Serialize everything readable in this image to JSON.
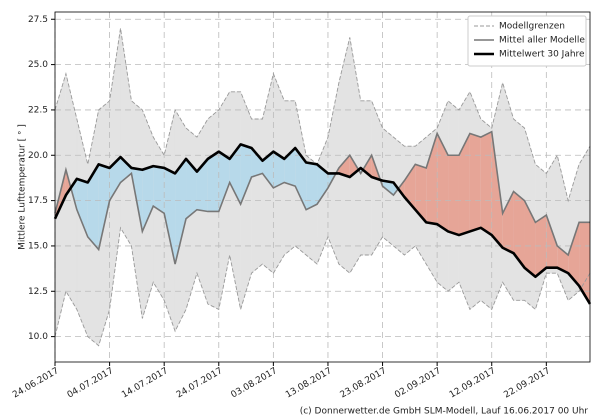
{
  "chart_data": {
    "type": "line",
    "ylabel": "Mittlere Lufttemperatur [ ° ]",
    "source": "(c) Donnerwetter.de GmbH SLM-Modell, Lauf 16.06.2017 00 Uhr",
    "x": [
      "2017-06-24",
      "2017-06-26",
      "2017-06-28",
      "2017-06-30",
      "2017-07-02",
      "2017-07-04",
      "2017-07-06",
      "2017-07-08",
      "2017-07-10",
      "2017-07-12",
      "2017-07-14",
      "2017-07-16",
      "2017-07-18",
      "2017-07-20",
      "2017-07-22",
      "2017-07-24",
      "2017-07-26",
      "2017-07-28",
      "2017-07-30",
      "2017-08-01",
      "2017-08-03",
      "2017-08-05",
      "2017-08-07",
      "2017-08-09",
      "2017-08-11",
      "2017-08-13",
      "2017-08-15",
      "2017-08-17",
      "2017-08-19",
      "2017-08-21",
      "2017-08-23",
      "2017-08-25",
      "2017-08-27",
      "2017-08-29",
      "2017-08-31",
      "2017-09-02",
      "2017-09-04",
      "2017-09-06",
      "2017-09-08",
      "2017-09-10",
      "2017-09-12",
      "2017-09-14",
      "2017-09-16",
      "2017-09-18",
      "2017-09-20",
      "2017-09-22",
      "2017-09-24",
      "2017-09-26",
      "2017-09-28",
      "2017-09-30"
    ],
    "bounds": {
      "name": "Modellgrenzen",
      "color": "#999999",
      "fill": "#e3e3e3",
      "upper": [
        22.5,
        24.5,
        22.0,
        19.5,
        22.5,
        23.0,
        27.0,
        23.0,
        22.5,
        21.0,
        20.0,
        22.5,
        21.5,
        21.0,
        22.0,
        22.5,
        23.5,
        23.5,
        22.0,
        22.0,
        24.5,
        23.0,
        23.0,
        20.0,
        19.5,
        21.0,
        24.0,
        26.5,
        23.0,
        23.0,
        21.5,
        21.0,
        20.5,
        20.5,
        21.0,
        21.5,
        23.0,
        22.5,
        23.5,
        22.0,
        21.5,
        24.0,
        22.0,
        21.5,
        19.5,
        19.0,
        20.0,
        17.5,
        19.5,
        20.5
      ],
      "lower": [
        10.0,
        12.5,
        11.5,
        10.0,
        9.5,
        11.5,
        16.0,
        15.0,
        11.0,
        13.0,
        12.0,
        10.3,
        11.5,
        13.5,
        11.8,
        11.5,
        14.5,
        11.5,
        13.5,
        14.0,
        13.5,
        14.5,
        15.0,
        14.5,
        14.0,
        15.5,
        14.0,
        13.5,
        14.5,
        14.5,
        15.5,
        15.0,
        14.5,
        15.0,
        14.0,
        13.0,
        12.5,
        13.0,
        11.5,
        12.0,
        11.5,
        13.0,
        12.0,
        12.0,
        11.5,
        13.5,
        13.5,
        12.0,
        12.5,
        13.5
      ]
    },
    "series": [
      {
        "name": "Mittel aller Modelle",
        "color": "#777777",
        "values": [
          16.8,
          19.2,
          17.0,
          15.5,
          14.8,
          17.5,
          18.5,
          19.0,
          15.8,
          17.2,
          16.8,
          14.0,
          16.5,
          17.0,
          16.9,
          16.9,
          18.5,
          17.3,
          18.8,
          19.0,
          18.2,
          18.5,
          18.3,
          17.0,
          17.3,
          18.2,
          19.3,
          20.0,
          19.0,
          20.0,
          18.3,
          17.8,
          18.6,
          19.5,
          19.3,
          21.2,
          20.0,
          20.0,
          21.2,
          21.0,
          21.3,
          16.8,
          18.0,
          17.5,
          16.3,
          16.7,
          15.0,
          14.5,
          16.3,
          16.3
        ]
      },
      {
        "name": "Mittelwert 30 Jahre",
        "color": "#000000",
        "values": [
          16.5,
          17.8,
          18.7,
          18.5,
          19.5,
          19.3,
          19.9,
          19.3,
          19.2,
          19.4,
          19.3,
          19.0,
          19.8,
          19.1,
          19.8,
          20.2,
          19.8,
          20.6,
          20.4,
          19.7,
          20.2,
          19.8,
          20.4,
          19.6,
          19.5,
          19.0,
          19.0,
          18.8,
          19.3,
          18.8,
          18.6,
          18.5,
          17.7,
          17.0,
          16.3,
          16.2,
          15.8,
          15.6,
          15.8,
          16.0,
          15.6,
          14.9,
          14.6,
          13.8,
          13.3,
          13.8,
          13.8,
          13.5,
          12.8,
          11.8
        ]
      }
    ],
    "cooler_color": "#b7d9ea",
    "warmer_color": "#e6a597",
    "xlim": [
      "2017-06-24",
      "2017-09-30"
    ],
    "xticks": [
      {
        "value": "2017-06-24",
        "label": "24.06.2017"
      },
      {
        "value": "2017-07-04",
        "label": "04.07.2017"
      },
      {
        "value": "2017-07-14",
        "label": "14.07.2017"
      },
      {
        "value": "2017-07-24",
        "label": "24.07.2017"
      },
      {
        "value": "2017-08-03",
        "label": "03.08.2017"
      },
      {
        "value": "2017-08-13",
        "label": "13.08.2017"
      },
      {
        "value": "2017-08-23",
        "label": "23.08.2017"
      },
      {
        "value": "2017-09-02",
        "label": "02.09.2017"
      },
      {
        "value": "2017-09-12",
        "label": "12.09.2017"
      },
      {
        "value": "2017-09-22",
        "label": "22.09.2017"
      }
    ],
    "ylim": [
      8.6,
      27.9
    ],
    "yticks": [
      {
        "value": 10,
        "label": "10.0"
      },
      12.5,
      {
        "value": 15,
        "label": "15.0"
      },
      17.5,
      {
        "value": 20,
        "label": "20.0"
      },
      22.5,
      {
        "value": 25,
        "label": "25.0"
      },
      27.5
    ],
    "grid": true,
    "legend": "upper right"
  }
}
